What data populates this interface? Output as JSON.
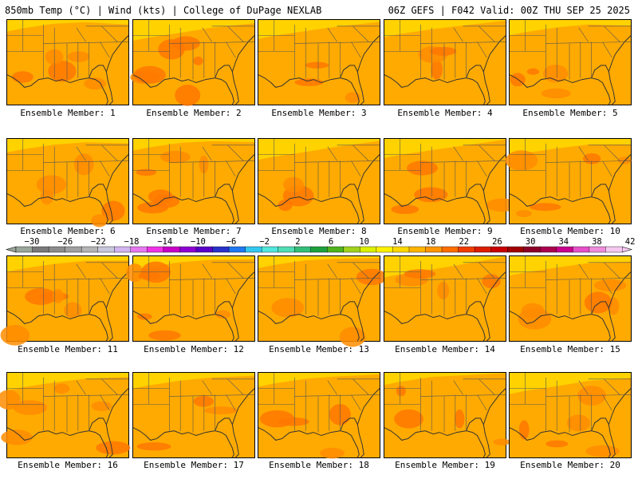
{
  "header": {
    "title_left": "850mb Temp (°C) | Wind (kts) | College of DuPage NEXLAB",
    "title_right": "06Z GEFS | F042 Valid: 00Z THU SEP 25 2025"
  },
  "panels": [
    {
      "caption": "Ensemble Member: 1",
      "member": 1
    },
    {
      "caption": "Ensemble Member: 2",
      "member": 2
    },
    {
      "caption": "Ensemble Member: 3",
      "member": 3
    },
    {
      "caption": "Ensemble Member: 4",
      "member": 4
    },
    {
      "caption": "Ensemble Member: 5",
      "member": 5
    },
    {
      "caption": "Ensemble Member: 6",
      "member": 6
    },
    {
      "caption": "Ensemble Member: 7",
      "member": 7
    },
    {
      "caption": "Ensemble Member: 8",
      "member": 8
    },
    {
      "caption": "Ensemble Member: 9",
      "member": 9
    },
    {
      "caption": "Ensemble Member: 10",
      "member": 10
    },
    {
      "caption": "Ensemble Member: 11",
      "member": 11
    },
    {
      "caption": "Ensemble Member: 12",
      "member": 12
    },
    {
      "caption": "Ensemble Member: 13",
      "member": 13
    },
    {
      "caption": "Ensemble Member: 14",
      "member": 14
    },
    {
      "caption": "Ensemble Member: 15",
      "member": 15
    },
    {
      "caption": "Ensemble Member: 16",
      "member": 16
    },
    {
      "caption": "Ensemble Member: 17",
      "member": 17
    },
    {
      "caption": "Ensemble Member: 18",
      "member": 18
    },
    {
      "caption": "Ensemble Member: 19",
      "member": 19
    },
    {
      "caption": "Ensemble Member: 20",
      "member": 20
    }
  ],
  "colorbar": {
    "labels": [
      "−30",
      "−26",
      "−22",
      "−18",
      "−14",
      "−10",
      "−6",
      "−2",
      "2",
      "6",
      "10",
      "14",
      "18",
      "22",
      "26",
      "30",
      "34",
      "38",
      "42"
    ],
    "colors": [
      "#9aa69a",
      "#7a7a7a",
      "#8c8c8c",
      "#a0a0a0",
      "#b4b4b4",
      "#c8c8dc",
      "#d2b4f0",
      "#e678f0",
      "#f032e6",
      "#c800c8",
      "#8c00d2",
      "#5a00c8",
      "#2832c8",
      "#1e78f0",
      "#32c8f0",
      "#50e6dc",
      "#50dcb4",
      "#32be78",
      "#1ea03c",
      "#50b41e",
      "#a0d21e",
      "#dcf000",
      "#fff000",
      "#ffd700",
      "#ffb400",
      "#ff9600",
      "#ff6e00",
      "#f03c00",
      "#dc1e00",
      "#c80000",
      "#a00000",
      "#8c0028",
      "#aa0050",
      "#c8008c",
      "#e650c8",
      "#f08cdc",
      "#f5c8f0"
    ],
    "unit_note": "850mb temperature °C"
  }
}
